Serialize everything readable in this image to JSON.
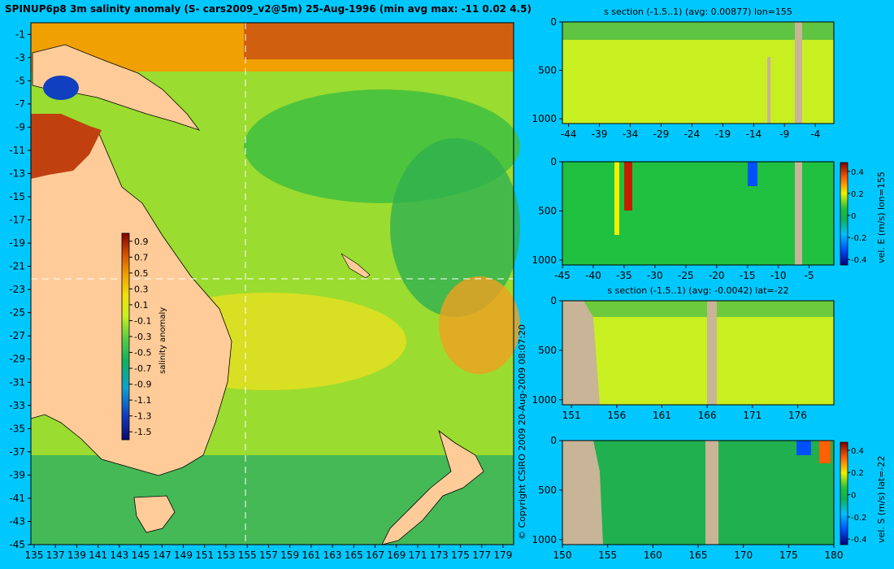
{
  "title": "SPINUP6p8 3m salinity anomaly (S- cars2009_v2@5m) 25-Aug-1996 (min avg max: -11 0.02 4.5)",
  "copyright": "© Copyright CSIRO 2009   20-Aug-2009 08:07:20",
  "colors": {
    "background": "#00c8ff",
    "land": "#ffcc99",
    "section_land": "#c8b496",
    "cross": "#ffffff"
  },
  "chart_data": [
    {
      "type": "heatmap",
      "name": "map",
      "x_ticks": [
        135,
        137,
        139,
        141,
        143,
        145,
        147,
        149,
        151,
        153,
        155,
        157,
        159,
        161,
        163,
        165,
        167,
        169,
        171,
        173,
        175,
        177,
        179
      ],
      "y_ticks": [
        -1,
        -3,
        -5,
        -7,
        -9,
        -11,
        -13,
        -15,
        -17,
        -19,
        -21,
        -23,
        -25,
        -27,
        -29,
        -31,
        -33,
        -35,
        -37,
        -39,
        -41,
        -43,
        -45
      ],
      "xlim": [
        134.7,
        180
      ],
      "ylim": [
        -45,
        0
      ],
      "crosshair": {
        "lon": 155,
        "lat": -22
      },
      "colorbar": {
        "label": "salinity anomaly",
        "range": [
          -1.6,
          1.0
        ],
        "ticks": [
          "0.9",
          "0.7",
          "0.5",
          "0.3",
          "0.1",
          "-0.1",
          "-0.3",
          "-0.5",
          "-0.7",
          "-0.9",
          "-1.1",
          "-1.3",
          "-1.5"
        ],
        "tick_values": [
          0.9,
          0.7,
          0.5,
          0.3,
          0.1,
          -0.1,
          -0.3,
          -0.5,
          -0.7,
          -0.9,
          -1.1,
          -1.3,
          -1.5
        ]
      }
    },
    {
      "type": "heatmap",
      "name": "section-s-lon155",
      "title": "s section (-1.5..1) (avg: 0.00877) lon=155",
      "x_ticks": [
        "-44",
        "-39",
        "-34",
        "-29",
        "-24",
        "-19",
        "-14",
        "-9",
        "-4"
      ],
      "x_values": [
        -44,
        -39,
        -34,
        -29,
        -24,
        -19,
        -14,
        -9,
        -4
      ],
      "xlim": [
        -45,
        -1
      ],
      "y_ticks": [
        "0",
        "500",
        "1000"
      ],
      "y_values": [
        0,
        500,
        1000
      ],
      "ylim": [
        0,
        1050
      ]
    },
    {
      "type": "heatmap",
      "name": "section-velE-lon155",
      "x_ticks": [
        "-45",
        "-40",
        "-35",
        "-30",
        "-25",
        "-20",
        "-15",
        "-10",
        "-5"
      ],
      "x_values": [
        -45,
        -40,
        -35,
        -30,
        -25,
        -20,
        -15,
        -10,
        -5
      ],
      "xlim": [
        -45,
        -1
      ],
      "y_ticks": [
        "0",
        "500",
        "1000"
      ],
      "y_values": [
        0,
        500,
        1000
      ],
      "ylim": [
        0,
        1050
      ],
      "colorbar": {
        "label": "vel. E (m/s) lon=155",
        "range": [
          -0.45,
          0.48
        ],
        "ticks": [
          "0.4",
          "0.2",
          "0",
          "-0.2",
          "-0.4"
        ],
        "tick_values": [
          0.4,
          0.2,
          0,
          -0.2,
          -0.4
        ]
      }
    },
    {
      "type": "heatmap",
      "name": "section-s-lat-22",
      "title": "s section (-1.5..1) (avg: -0.0042) lat=-22",
      "x_ticks": [
        "151",
        "156",
        "161",
        "166",
        "171",
        "176"
      ],
      "x_values": [
        151,
        156,
        161,
        166,
        171,
        176
      ],
      "xlim": [
        150,
        180
      ],
      "y_ticks": [
        "0",
        "500",
        "1000"
      ],
      "y_values": [
        0,
        500,
        1000
      ],
      "ylim": [
        0,
        1050
      ]
    },
    {
      "type": "heatmap",
      "name": "section-velS-lat-22",
      "x_ticks": [
        "150",
        "155",
        "160",
        "165",
        "170",
        "175",
        "180"
      ],
      "x_values": [
        150,
        155,
        160,
        165,
        170,
        175,
        180
      ],
      "xlim": [
        150,
        180
      ],
      "y_ticks": [
        "0",
        "500",
        "1000"
      ],
      "y_values": [
        0,
        500,
        1000
      ],
      "ylim": [
        0,
        1050
      ],
      "colorbar": {
        "label": "vel. S (m/s) lat=-22",
        "range": [
          -0.45,
          0.48
        ],
        "ticks": [
          "0.4",
          "0.2",
          "0",
          "-0.2",
          "-0.4"
        ],
        "tick_values": [
          0.4,
          0.2,
          0,
          -0.2,
          -0.4
        ]
      }
    }
  ]
}
